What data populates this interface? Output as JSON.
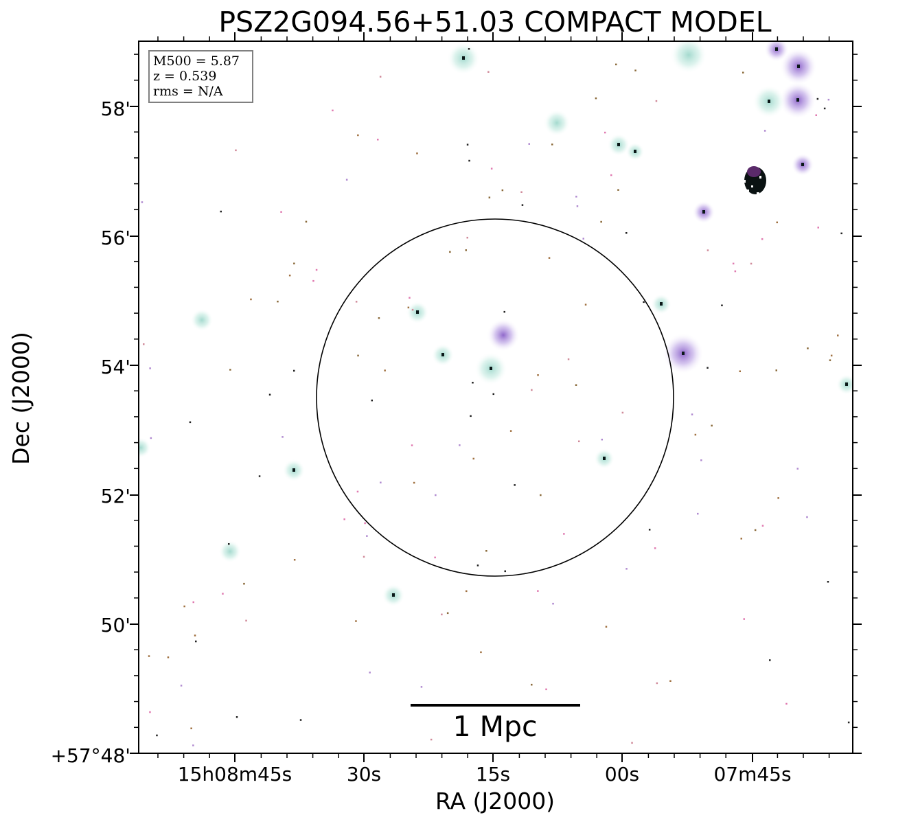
{
  "title": "PSZ2G094.56+51.03 COMPACT MODEL",
  "info_box": {
    "m500": "M500 = 5.87",
    "z": "z = 0.539",
    "rms": "rms = N/A"
  },
  "axes": {
    "xlabel": "RA (J2000)",
    "ylabel": "Dec (J2000)",
    "x_ticks": [
      "15h08m45s",
      "30s",
      "15s",
      "00s",
      "07m45s"
    ],
    "y_ticks": [
      "+57°48'",
      "50'",
      "52'",
      "54'",
      "56'",
      "58'"
    ]
  },
  "scalebar": {
    "label": "1 Mpc"
  },
  "colors": {
    "background": "#ffffff",
    "halo": "#cfe9e4",
    "halo_purple": "#c9b8e8",
    "core": "#0a1a1a",
    "speck_pink": "#e07ab0",
    "speck_brown": "#a07040",
    "speck_lilac": "#b08ad0"
  }
}
